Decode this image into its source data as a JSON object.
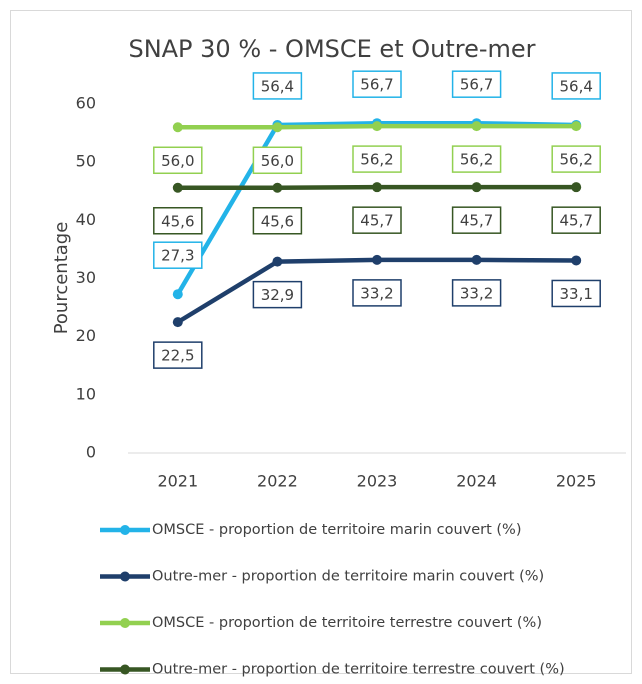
{
  "chart_data": {
    "type": "line",
    "title": "SNAP 30 % - OMSCE et Outre-mer",
    "y_label": "Pourcentage",
    "categories": [
      "2021",
      "2022",
      "2023",
      "2024",
      "2025"
    ],
    "series": [
      {
        "name": "OMSCE - proportion de territoire marin couvert (%)",
        "color": "#23b3e8",
        "label_position": "above",
        "values": [
          27.3,
          56.4,
          56.7,
          56.7,
          56.4
        ],
        "value_labels": [
          "27,3",
          "56,4",
          "56,7",
          "56,7",
          "56,4"
        ]
      },
      {
        "name": "Outre-mer - proportion de territoire marin couvert (%)",
        "color": "#1f3f6b",
        "label_position": "below",
        "values": [
          22.5,
          32.9,
          33.2,
          33.2,
          33.1
        ],
        "value_labels": [
          "22,5",
          "32,9",
          "33,2",
          "33,2",
          "33,1"
        ]
      },
      {
        "name": "OMSCE - proportion de territoire terrestre couvert (%)",
        "color": "#92d050",
        "label_position": "below",
        "values": [
          56.0,
          56.0,
          56.2,
          56.2,
          56.2
        ],
        "value_labels": [
          "56,0",
          "56,0",
          "56,2",
          "56,2",
          "56,2"
        ]
      },
      {
        "name": "Outre-mer - proportion de territoire terrestre couvert (%)",
        "color": "#375623",
        "label_position": "below",
        "values": [
          45.6,
          45.6,
          45.7,
          45.7,
          45.7
        ],
        "value_labels": [
          "45,6",
          "45,6",
          "45,7",
          "45,7",
          "45,7"
        ]
      }
    ],
    "ylim": [
      0,
      60
    ],
    "yticks": [
      0,
      10,
      20,
      30,
      40,
      50,
      60
    ],
    "grid": false,
    "legend": "bottom"
  }
}
